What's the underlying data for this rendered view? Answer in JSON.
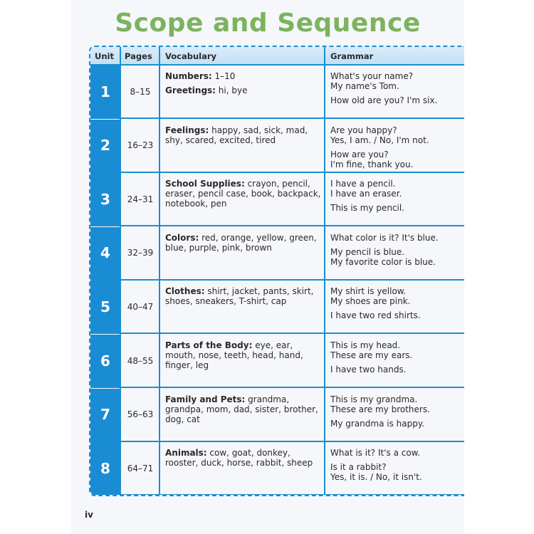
{
  "title": "Scope and Sequence",
  "headers": {
    "unit": "Unit",
    "pages": "Pages",
    "vocabulary": "Vocabulary",
    "grammar": "Grammar"
  },
  "colors": {
    "title": "#7cb35e",
    "unit_cell": "#1a8cd4",
    "header_bg": "#cfe6f7",
    "border": "#1a8fcf"
  },
  "rows": [
    {
      "unit": "1",
      "pages": "8–15",
      "vocab": [
        {
          "label": "Numbers:",
          "text": " 1–10"
        },
        {
          "label": "Greetings:",
          "text": " hi, bye"
        }
      ],
      "grammar": [
        [
          "What's your name?",
          "My name's Tom."
        ],
        [
          "How old are you? I'm six."
        ]
      ]
    },
    {
      "unit": "2",
      "pages": "16–23",
      "vocab": [
        {
          "label": "Feelings:",
          "text": " happy, sad, sick, mad, shy, scared, excited, tired"
        }
      ],
      "grammar": [
        [
          "Are you happy?",
          "Yes, I am. / No, I'm not."
        ],
        [
          "How are you?",
          "I'm fine, thank you."
        ]
      ]
    },
    {
      "unit": "3",
      "pages": "24–31",
      "vocab": [
        {
          "label": "School Supplies:",
          "text": " crayon, pencil, eraser, pencil case, book, backpack, notebook, pen"
        }
      ],
      "grammar": [
        [
          "I have a pencil.",
          "I have an eraser."
        ],
        [
          "This is my pencil."
        ]
      ]
    },
    {
      "unit": "4",
      "pages": "32–39",
      "vocab": [
        {
          "label": "Colors:",
          "text": " red, orange, yellow, green, blue, purple, pink, brown"
        }
      ],
      "grammar": [
        [
          "What color is it? It's blue."
        ],
        [
          "My pencil is blue.",
          "My favorite color is blue."
        ]
      ]
    },
    {
      "unit": "5",
      "pages": "40–47",
      "vocab": [
        {
          "label": "Clothes:",
          "text": " shirt, jacket, pants, skirt, shoes, sneakers, T-shirt, cap"
        }
      ],
      "grammar": [
        [
          "My shirt is yellow.",
          "My shoes are pink."
        ],
        [
          "I have two red shirts."
        ]
      ]
    },
    {
      "unit": "6",
      "pages": "48–55",
      "vocab": [
        {
          "label": "Parts of the Body:",
          "text": " eye, ear, mouth, nose, teeth, head, hand, finger, leg"
        }
      ],
      "grammar": [
        [
          "This is my head.",
          "These are my ears."
        ],
        [
          "I have two hands."
        ]
      ]
    },
    {
      "unit": "7",
      "pages": "56–63",
      "vocab": [
        {
          "label": "Family and Pets:",
          "text": " grandma, grandpa, mom, dad, sister, brother, dog, cat"
        }
      ],
      "grammar": [
        [
          "This is my grandma.",
          "These are my brothers."
        ],
        [
          "My grandma is happy."
        ]
      ]
    },
    {
      "unit": "8",
      "pages": "64–71",
      "vocab": [
        {
          "label": "Animals:",
          "text": " cow, goat, donkey, rooster, duck, horse, rabbit, sheep"
        }
      ],
      "grammar": [
        [
          "What is it? It's a cow."
        ],
        [
          "Is it a rabbit?",
          "Yes, it is. / No, it isn't."
        ]
      ]
    }
  ],
  "page_number": "iv"
}
